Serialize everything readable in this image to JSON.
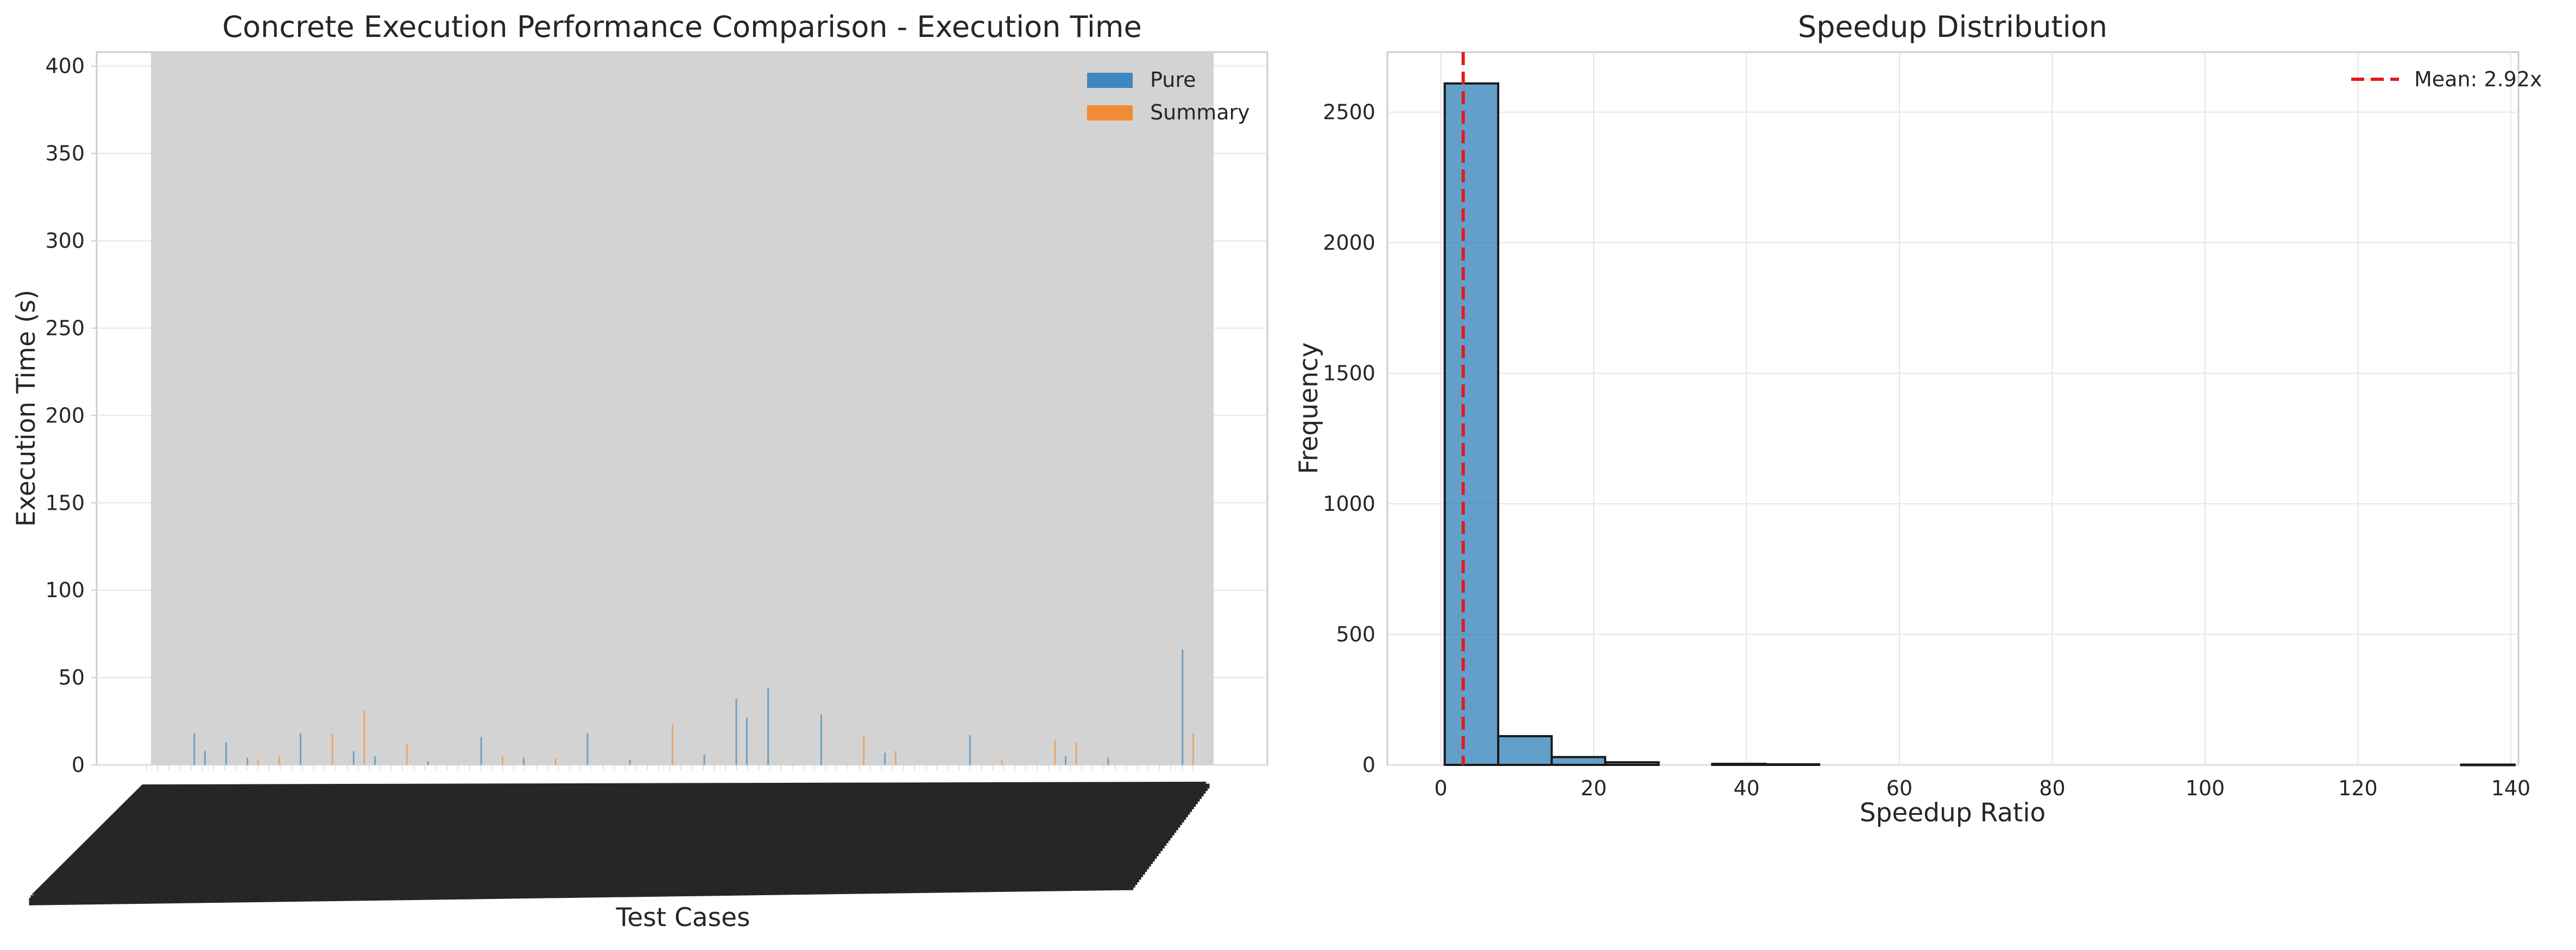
{
  "chart_data": [
    {
      "type": "bar",
      "title": "Concrete Execution Performance Comparison - Execution Time",
      "xlabel": "Test Cases",
      "ylabel": "Execution Time (s)",
      "ylim": [
        0,
        408
      ],
      "yticks": [
        0,
        50,
        100,
        150,
        200,
        250,
        300,
        350,
        400
      ],
      "grid": true,
      "legend_position": "top-right",
      "series": [
        {
          "name": "Pure",
          "color": "#1f77b4"
        },
        {
          "name": "Summary",
          "color": "#ff7f0e"
        }
      ],
      "peaks": [
        {
          "x": 0.04,
          "series": "Pure",
          "value": 18
        },
        {
          "x": 0.05,
          "series": "Pure",
          "value": 8
        },
        {
          "x": 0.07,
          "series": "Pure",
          "value": 13
        },
        {
          "x": 0.09,
          "series": "Pure",
          "value": 4
        },
        {
          "x": 0.1,
          "series": "Summary",
          "value": 3
        },
        {
          "x": 0.12,
          "series": "Summary",
          "value": 5
        },
        {
          "x": 0.14,
          "series": "Pure",
          "value": 18
        },
        {
          "x": 0.17,
          "series": "Summary",
          "value": 18
        },
        {
          "x": 0.19,
          "series": "Pure",
          "value": 8
        },
        {
          "x": 0.2,
          "series": "Summary",
          "value": 31
        },
        {
          "x": 0.21,
          "series": "Pure",
          "value": 5
        },
        {
          "x": 0.24,
          "series": "Summary",
          "value": 12
        },
        {
          "x": 0.26,
          "series": "Pure",
          "value": 2
        },
        {
          "x": 0.31,
          "series": "Pure",
          "value": 16
        },
        {
          "x": 0.33,
          "series": "Summary",
          "value": 5
        },
        {
          "x": 0.35,
          "series": "Pure",
          "value": 4
        },
        {
          "x": 0.38,
          "series": "Summary",
          "value": 4
        },
        {
          "x": 0.41,
          "series": "Pure",
          "value": 18
        },
        {
          "x": 0.45,
          "series": "Pure",
          "value": 3
        },
        {
          "x": 0.49,
          "series": "Summary",
          "value": 23
        },
        {
          "x": 0.52,
          "series": "Pure",
          "value": 6
        },
        {
          "x": 0.55,
          "series": "Pure",
          "value": 38
        },
        {
          "x": 0.56,
          "series": "Pure",
          "value": 27
        },
        {
          "x": 0.58,
          "series": "Pure",
          "value": 44
        },
        {
          "x": 0.63,
          "series": "Pure",
          "value": 29
        },
        {
          "x": 0.67,
          "series": "Summary",
          "value": 17
        },
        {
          "x": 0.69,
          "series": "Pure",
          "value": 7
        },
        {
          "x": 0.7,
          "series": "Summary",
          "value": 8
        },
        {
          "x": 0.77,
          "series": "Pure",
          "value": 17
        },
        {
          "x": 0.8,
          "series": "Summary",
          "value": 3
        },
        {
          "x": 0.85,
          "series": "Summary",
          "value": 14
        },
        {
          "x": 0.86,
          "series": "Pure",
          "value": 5
        },
        {
          "x": 0.87,
          "series": "Summary",
          "value": 13
        },
        {
          "x": 0.9,
          "series": "Pure",
          "value": 4
        },
        {
          "x": 0.97,
          "series": "Pure",
          "value": 66
        },
        {
          "x": 0.98,
          "series": "Summary",
          "value": 18
        }
      ]
    },
    {
      "type": "bar",
      "title": "Speedup Distribution",
      "xlabel": "Speedup Ratio",
      "ylabel": "Frequency",
      "xlim": [
        -7,
        141
      ],
      "ylim": [
        0,
        2730
      ],
      "xticks": [
        0,
        20,
        40,
        60,
        80,
        100,
        120,
        140
      ],
      "yticks": [
        0,
        500,
        1000,
        1500,
        2000,
        2500
      ],
      "grid": true,
      "legend_position": "top-right",
      "bar_color": "#1f77b4",
      "bins": [
        {
          "start": 0.5,
          "end": 7.5,
          "count": 2610
        },
        {
          "start": 7.5,
          "end": 14.5,
          "count": 110
        },
        {
          "start": 14.5,
          "end": 21.5,
          "count": 30
        },
        {
          "start": 21.5,
          "end": 28.5,
          "count": 10
        },
        {
          "start": 35.5,
          "end": 42.5,
          "count": 4
        },
        {
          "start": 42.5,
          "end": 49.5,
          "count": 2
        },
        {
          "start": 133.5,
          "end": 140.5,
          "count": 1
        }
      ],
      "mean": 2.92,
      "mean_label": "Mean: 2.92x",
      "mean_color": "#e41a1c"
    }
  ]
}
